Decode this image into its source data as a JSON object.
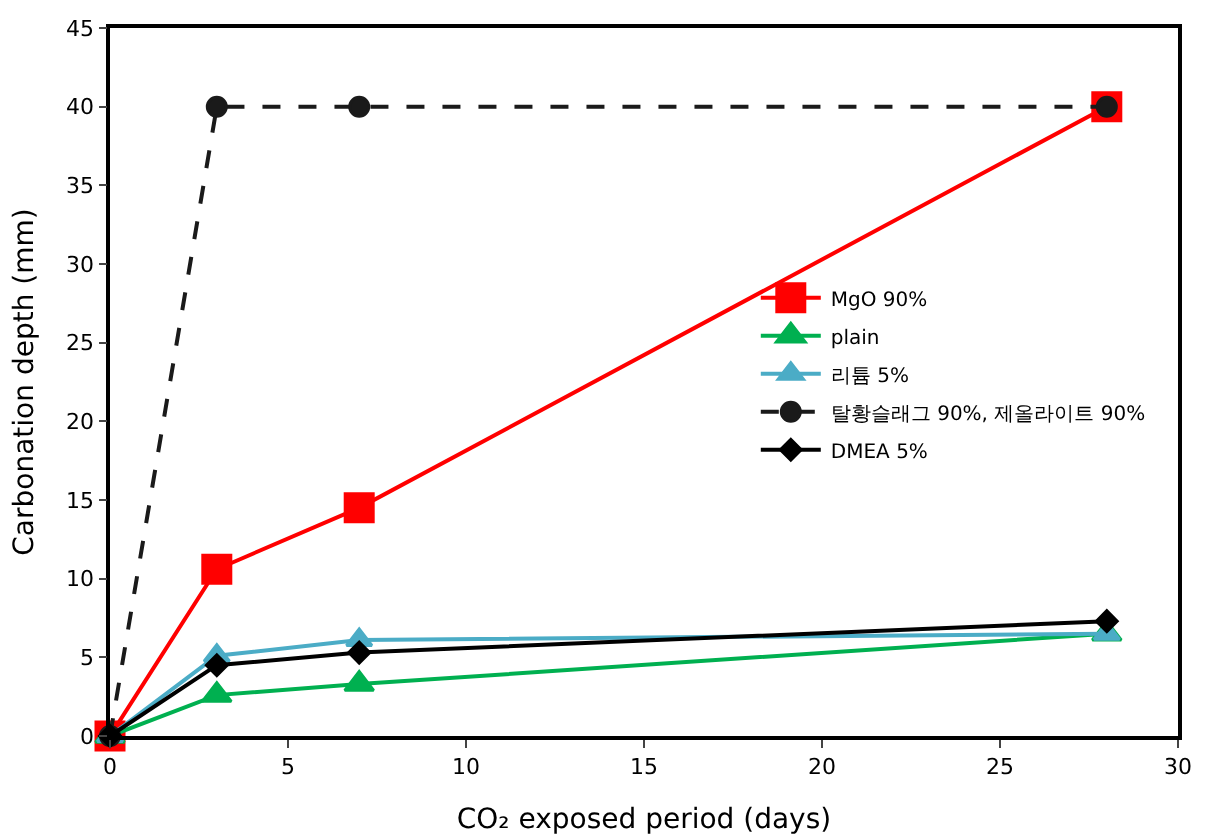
{
  "chart_data": {
    "type": "line",
    "xlabel": "CO₂ exposed period (days)",
    "ylabel": "Carbonation depth (mm)",
    "x": [
      0,
      3,
      7,
      28
    ],
    "series": [
      {
        "name": "MgO 90%",
        "color": "#ff0000",
        "values": [
          0,
          10.6,
          14.5,
          40
        ],
        "marker": "square"
      },
      {
        "name": "plain",
        "color": "#00b050",
        "values": [
          0,
          2.6,
          3.3,
          6.5
        ],
        "marker": "triangle"
      },
      {
        "name": "리튬 5%",
        "color": "#4bacc6",
        "values": [
          0,
          5.1,
          6.1,
          6.5
        ],
        "marker": "triangle"
      },
      {
        "name": "탈황슬래그 90%, 제올라이트 90%",
        "color": "#1a1a1a",
        "values": [
          0,
          40,
          40,
          40
        ],
        "marker": "circle",
        "line_style": "dashed"
      },
      {
        "name": "DMEA 5%",
        "color": "#000000",
        "values": [
          0,
          4.5,
          5.3,
          7.3
        ],
        "marker": "diamond"
      }
    ],
    "xlim": [
      0,
      30
    ],
    "xticks": [
      0,
      5,
      10,
      15,
      20,
      25,
      30
    ],
    "ylim": [
      0,
      45
    ],
    "yticks": [
      0,
      5,
      10,
      15,
      20,
      25,
      30,
      35,
      40,
      45
    ],
    "grid": false,
    "legend": "right",
    "line_style": "solid"
  }
}
